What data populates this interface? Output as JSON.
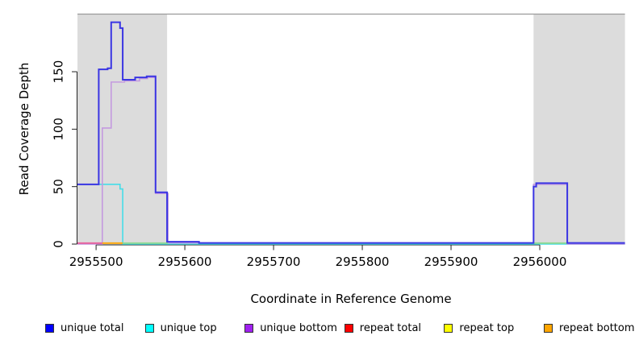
{
  "figure": {
    "ylabel": "Read Coverage Depth",
    "xlabel": "Coordinate in Reference Genome",
    "background_color": "#ffffff"
  },
  "chart_data": {
    "type": "line",
    "subtype": "step-after genome coverage plot",
    "title": "",
    "xlabel": "Coordinate in Reference Genome",
    "ylabel": "Read Coverage Depth",
    "xlim": [
      2955479,
      2956096
    ],
    "ylim": [
      0,
      200
    ],
    "x_ticks": [
      2955500,
      2955600,
      2955700,
      2955800,
      2955900,
      2956000
    ],
    "y_ticks": [
      0,
      50,
      100,
      150
    ],
    "grid": false,
    "axis_color": "#222222",
    "frame_top_color": "#9a9a9a",
    "shaded_regions": [
      {
        "name": "left-highlight",
        "from": 2955479,
        "to": 2955580,
        "fill": "#dcdcdc"
      },
      {
        "name": "right-highlight",
        "from": 2955993,
        "to": 2956096,
        "fill": "#dcdcdc"
      }
    ],
    "series": [
      {
        "name": "unique top",
        "line_color": "#45dde8",
        "line_width": 1.6,
        "points": [
          [
            2955479,
            52
          ],
          [
            2955527,
            48
          ],
          [
            2955530,
            0
          ]
        ]
      },
      {
        "name": "unique bottom",
        "line_color": "#c49adf",
        "line_width": 1.6,
        "points": [
          [
            2955479,
            0
          ],
          [
            2955507,
            101
          ],
          [
            2955517,
            141
          ],
          [
            2955532,
            142
          ],
          [
            2955549,
            144
          ],
          [
            2955558,
            145
          ],
          [
            2955567,
            44
          ],
          [
            2955581,
            1
          ],
          [
            2955993,
            52
          ],
          [
            2956031,
            0
          ]
        ]
      },
      {
        "name": "unique total",
        "line_color": "#3a35e3",
        "line_width": 2,
        "points": [
          [
            2955479,
            52
          ],
          [
            2955503,
            152
          ],
          [
            2955513,
            153
          ],
          [
            2955517,
            193
          ],
          [
            2955527,
            188
          ],
          [
            2955530,
            143
          ],
          [
            2955544,
            145
          ],
          [
            2955557,
            146
          ],
          [
            2955567,
            45
          ],
          [
            2955580,
            2
          ],
          [
            2955616,
            1
          ],
          [
            2955993,
            50
          ],
          [
            2955996,
            53
          ],
          [
            2956031,
            1
          ]
        ]
      }
    ],
    "baseline_segments": [
      {
        "name": "repeat total at zero",
        "color": "#e8609a",
        "from": 2955479,
        "to": 2955507
      },
      {
        "name": "repeat bottom at zero",
        "color": "#ffa500",
        "from": 2955507,
        "to": 2955530
      },
      {
        "name": "repeat top over unique top at zero",
        "color": "#90d890",
        "from": 2955530,
        "to": 2955581
      },
      {
        "name": "repeat top over unique top at zero",
        "color": "#90d890",
        "from": 2955993,
        "to": 2956031
      }
    ],
    "legend": {
      "position": "bottom",
      "items": [
        {
          "label": "unique total",
          "color": "#0000ff"
        },
        {
          "label": "unique top",
          "color": "#00ffff"
        },
        {
          "label": "unique bottom",
          "color": "#a020f0"
        },
        {
          "label": "repeat total",
          "color": "#ff0000"
        },
        {
          "label": "repeat top",
          "color": "#ffff00"
        },
        {
          "label": "repeat bottom",
          "color": "#ffa500"
        }
      ]
    }
  }
}
